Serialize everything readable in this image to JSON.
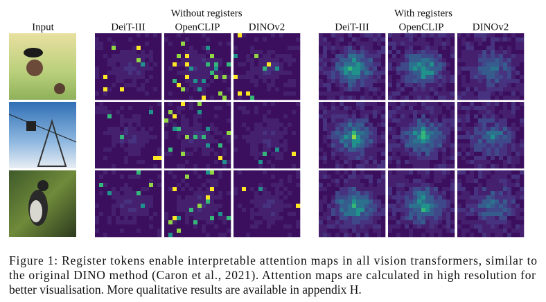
{
  "figure": {
    "input_label": "Input",
    "groups": [
      {
        "title": "Without registers",
        "models": [
          "DeiT-III",
          "OpenCLIP",
          "DINOv2"
        ]
      },
      {
        "title": "With registers",
        "models": [
          "DeiT-III",
          "OpenCLIP",
          "DINOv2"
        ]
      }
    ],
    "caption": [
      "Figure 1: Register tokens enable  interpretable attention maps in all vision transformers, similar to",
      "the original DINO method (Caron et al., 2021). Attention maps are calculated in high resolution for",
      "better visualisation. More qualitative results are available in appendix H."
    ]
  }
}
